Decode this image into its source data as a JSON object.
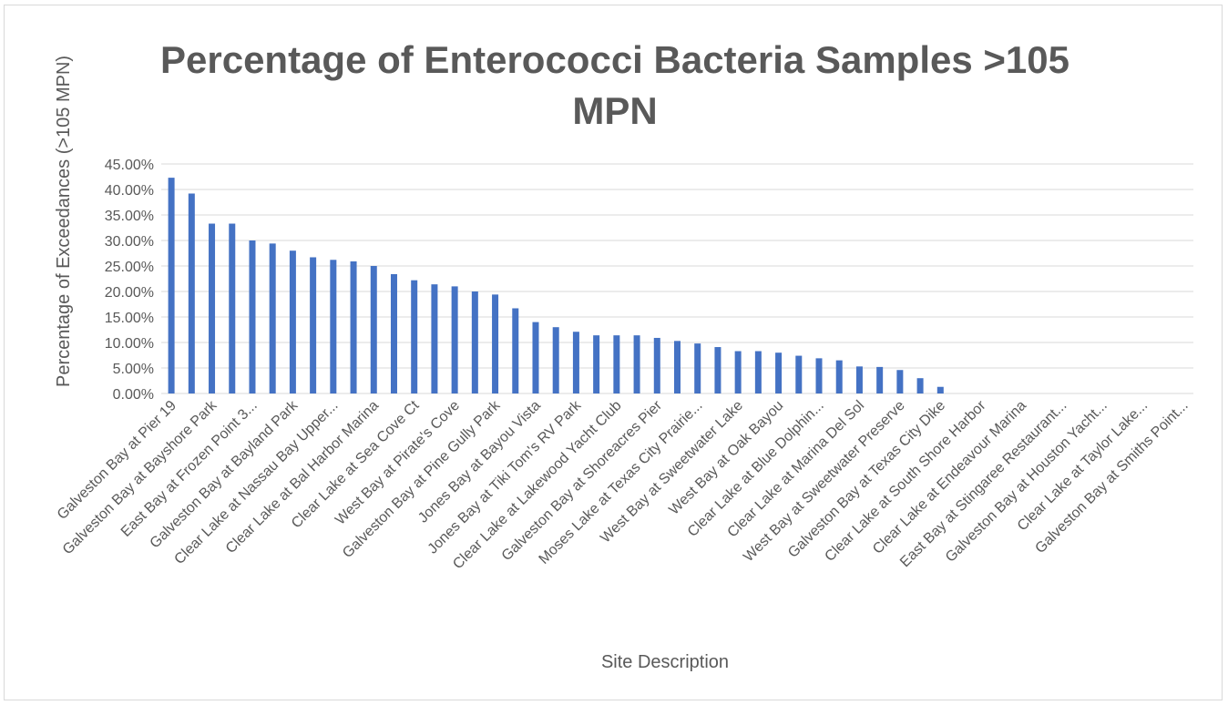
{
  "chart_data": {
    "type": "bar",
    "title": "Percentage of Enterococci Bacteria Samples >105 MPN",
    "x_label": "Site Description",
    "y_label": "Percentage of Exceedances (>105 MPN)",
    "color": "#4472c4",
    "grid": true,
    "categories": [
      "Galveston Bay at Pier 19",
      null,
      "Galveston Bay at Bayshore Park",
      null,
      "East Bay at Frozen Point 3...",
      null,
      "Galveston Bay at Bayland Park",
      null,
      "Clear Lake at Nassau Bay Upper...",
      null,
      "Clear Lake at Bal Harbor Marina",
      null,
      "Clear Lake at Sea Cove Ct",
      null,
      "West Bay at Pirate's Cove",
      null,
      "Galveston Bay at Pine Gully Park",
      null,
      "Jones Bay at Bayou Vista",
      null,
      "Jones Bay at Tiki Tom's RV Park",
      null,
      "Clear Lake at Lakewood Yacht Club",
      null,
      "Galveston Bay at Shoreacres Pier",
      null,
      "Moses Lake at Texas City Prairie...",
      null,
      "West Bay at Sweetwater Lake",
      null,
      "West Bay at Oak Bayou",
      null,
      "Clear Lake at Blue Dolphin...",
      null,
      "Clear Lake at Marina Del Sol",
      null,
      "West Bay at Sweetwater Preserve",
      null,
      "Galveston Bay at Texas City Dike",
      null,
      "Clear Lake at South Shore Harbor",
      null,
      "Clear Lake at Endeavour Marina",
      null,
      "East Bay at Stingaree Restaurant...",
      null,
      "Galveston Bay at Houston Yacht...",
      null,
      "Clear Lake at Taylor Lake...",
      null,
      "Galveston Bay at Smiths Point..."
    ],
    "values": [
      42.3,
      39.2,
      33.3,
      33.3,
      30.0,
      29.4,
      28.0,
      26.7,
      26.2,
      25.9,
      25.0,
      23.4,
      22.2,
      21.4,
      21.0,
      20.0,
      19.4,
      16.7,
      14.0,
      13.0,
      12.1,
      11.4,
      11.4,
      11.4,
      10.9,
      10.3,
      9.8,
      9.1,
      8.3,
      8.3,
      8.0,
      7.4,
      6.9,
      6.5,
      5.3,
      5.2,
      4.6,
      3.0,
      1.3,
      0,
      0,
      0,
      0,
      0,
      0,
      0,
      0,
      0,
      0,
      0,
      0
    ],
    "ylim": [
      0,
      45
    ],
    "yticks": [
      {
        "value": 0,
        "label": "0.00%"
      },
      {
        "value": 5,
        "label": "5.00%"
      },
      {
        "value": 10,
        "label": "10.00%"
      },
      {
        "value": 15,
        "label": "15.00%"
      },
      {
        "value": 20,
        "label": "20.00%"
      },
      {
        "value": 25,
        "label": "25.00%"
      },
      {
        "value": 30,
        "label": "30.00%"
      },
      {
        "value": 35,
        "label": "35.00%"
      },
      {
        "value": 40,
        "label": "40.00%"
      },
      {
        "value": 45,
        "label": "45.00%"
      }
    ]
  }
}
